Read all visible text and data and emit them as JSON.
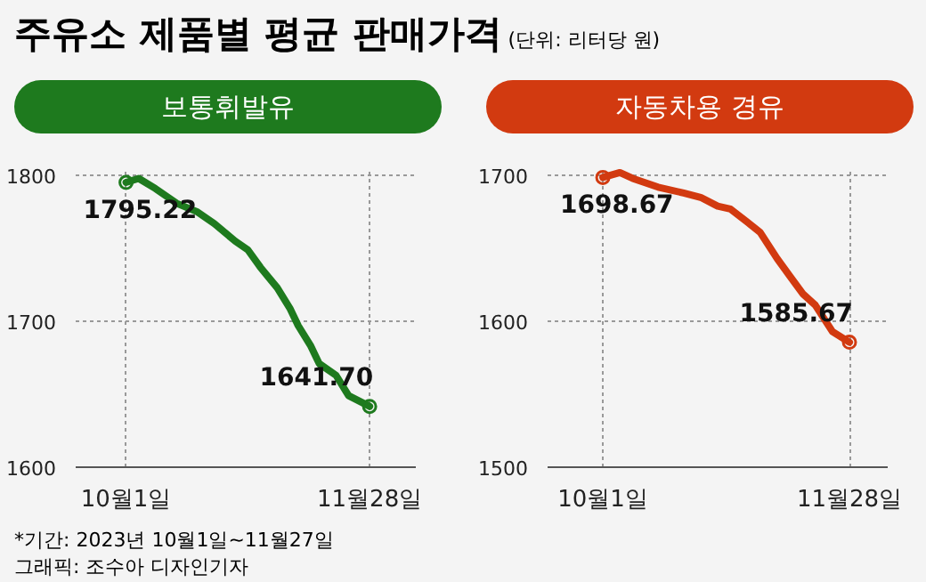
{
  "chart_data": [
    {
      "type": "line",
      "title": "주유소 제품별 평균 판매가격",
      "annotations": [
        "*기간: 2023년 10월1일~11월27일",
        "그래픽: 조수아 디자인기자"
      ],
      "x": [
        "2023-10-01",
        "2023-10-04",
        "2023-10-08",
        "2023-10-13",
        "2023-10-18",
        "2023-10-22",
        "2023-10-27",
        "2023-10-30",
        "2023-11-02",
        "2023-11-06",
        "2023-11-09",
        "2023-11-11",
        "2023-11-14",
        "2023-11-16",
        "2023-11-20",
        "2023-11-23",
        "2023-11-28"
      ],
      "series": [
        {
          "name": "보통휘발유",
          "color": "#1e7a1e",
          "values": [
            1795.22,
            1798,
            1791,
            1781,
            1775,
            1767,
            1755,
            1749,
            1737,
            1723,
            1709,
            1697,
            1683,
            1671,
            1663,
            1649,
            1641.7
          ],
          "value_labels": [
            "1795.22",
            null,
            null,
            null,
            null,
            null,
            null,
            null,
            null,
            null,
            null,
            null,
            null,
            null,
            null,
            null,
            "1641.70"
          ]
        }
      ],
      "xlim": [
        "2023-09-19",
        "2023-12-09"
      ],
      "xticks": [
        {
          "value": "2023-10-01",
          "label": "10월1일"
        },
        {
          "value": "2023-11-28",
          "label": "11월28일"
        }
      ],
      "ylim": [
        1600,
        1805
      ],
      "yticks": [
        1600,
        1700,
        1800
      ],
      "grid": true
    },
    {
      "type": "line",
      "subtitle": "(단위: 리터당 원)",
      "x": [
        "2023-10-01",
        "2023-10-05",
        "2023-10-08",
        "2023-10-14",
        "2023-10-20",
        "2023-10-24",
        "2023-10-28",
        "2023-10-31",
        "2023-11-04",
        "2023-11-07",
        "2023-11-11",
        "2023-11-14",
        "2023-11-17",
        "2023-11-20",
        "2023-11-24",
        "2023-11-28"
      ],
      "series": [
        {
          "name": "자동차용 경유",
          "color": "#d23a10",
          "values": [
            1698.67,
            1702,
            1698,
            1692,
            1688,
            1685,
            1679,
            1677,
            1668,
            1661,
            1643,
            1631,
            1619,
            1611,
            1593,
            1585.67
          ],
          "value_labels": [
            "1698.67",
            null,
            null,
            null,
            null,
            null,
            null,
            null,
            null,
            null,
            null,
            null,
            null,
            null,
            null,
            "1585.67"
          ]
        }
      ],
      "xlim": [
        "2023-09-18",
        "2023-12-07"
      ],
      "xticks": [
        {
          "value": "2023-10-01",
          "label": "10월1일"
        },
        {
          "value": "2023-11-28",
          "label": "11월28일"
        }
      ],
      "ylim": [
        1500,
        1705
      ],
      "yticks": [
        1500,
        1600,
        1700
      ],
      "grid": true
    }
  ]
}
